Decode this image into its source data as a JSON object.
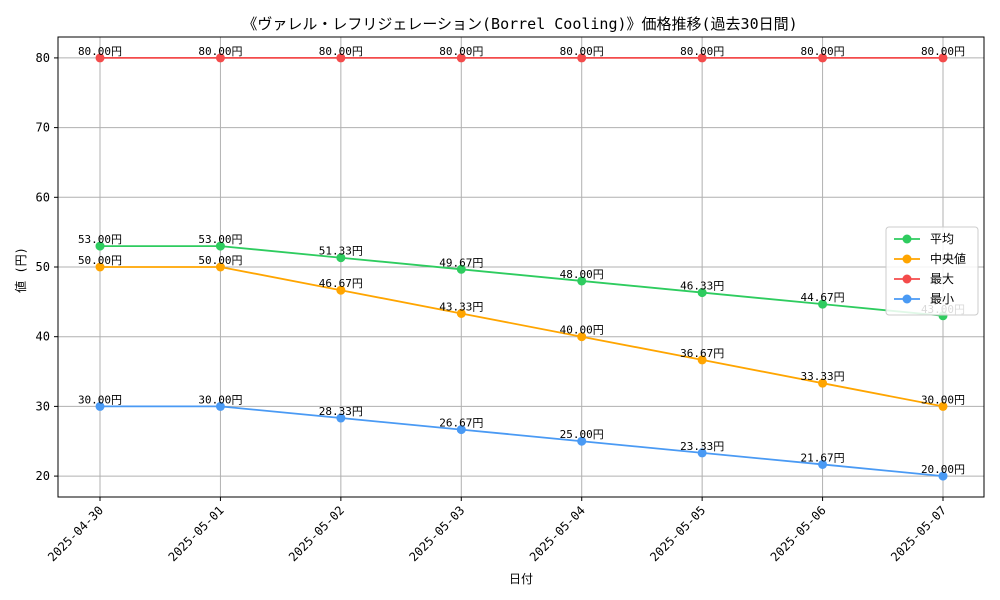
{
  "chart_data": {
    "type": "line",
    "title": "《ヴァレル・レフリジェレーション(Borrel Cooling)》価格推移(過去30日間)",
    "xlabel": "日付",
    "ylabel": "値 (円)",
    "categories": [
      "2025-04-30",
      "2025-05-01",
      "2025-05-02",
      "2025-05-03",
      "2025-05-04",
      "2025-05-05",
      "2025-05-06",
      "2025-05-07"
    ],
    "ylim": [
      17,
      83
    ],
    "yticks": [
      20,
      30,
      40,
      50,
      60,
      70,
      80
    ],
    "grid": true,
    "legend_position": "right",
    "value_suffix": "円",
    "series": [
      {
        "name": "平均",
        "color": "#2ecc5f",
        "values": [
          53.0,
          53.0,
          51.33,
          49.67,
          48.0,
          46.33,
          44.67,
          43.0
        ]
      },
      {
        "name": "中央値",
        "color": "#ffa500",
        "values": [
          50.0,
          50.0,
          46.67,
          43.33,
          40.0,
          36.67,
          33.33,
          30.0
        ]
      },
      {
        "name": "最大",
        "color": "#f44b4b",
        "values": [
          80.0,
          80.0,
          80.0,
          80.0,
          80.0,
          80.0,
          80.0,
          80.0
        ]
      },
      {
        "name": "最小",
        "color": "#4a9af4",
        "values": [
          30.0,
          30.0,
          28.33,
          26.67,
          25.0,
          23.33,
          21.67,
          20.0
        ]
      }
    ]
  }
}
